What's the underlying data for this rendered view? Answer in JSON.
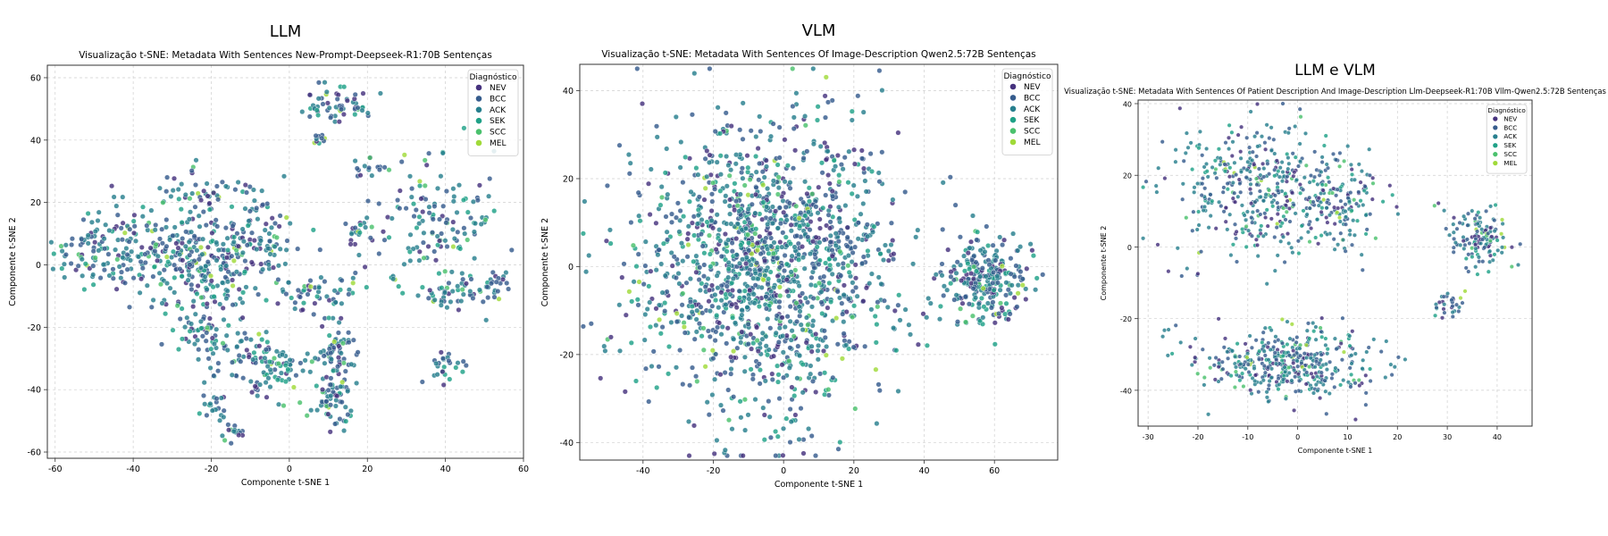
{
  "chart_data": [
    {
      "type": "scatter",
      "suptitle": "LLM",
      "title": "Visualização t-SNE: Metadata With Sentences New-Prompt-Deepseek-R1:70B Sentenças",
      "xlabel": "Componente t-SNE 1",
      "ylabel": "Componente t-SNE 2",
      "xlim": [
        -62,
        60
      ],
      "ylim": [
        -62,
        64
      ],
      "xticks": [
        -60,
        -40,
        -20,
        0,
        20,
        40,
        60
      ],
      "yticks": [
        -60,
        -40,
        -20,
        0,
        20,
        40,
        60
      ],
      "grid": true,
      "legend": {
        "title": "Diagnóstico",
        "location": "top-right"
      },
      "clusters": [
        {
          "cx": -48,
          "cy": 5,
          "sx": 6,
          "sy": 7,
          "n": 110
        },
        {
          "cx": -30,
          "cy": 5,
          "sx": 7,
          "sy": 8,
          "n": 150
        },
        {
          "cx": -20,
          "cy": -2,
          "sx": 5,
          "sy": 9,
          "n": 140
        },
        {
          "cx": -8,
          "cy": 7,
          "sx": 5,
          "sy": 6,
          "n": 90
        },
        {
          "cx": -20,
          "cy": 22,
          "sx": 6,
          "sy": 4,
          "n": 50
        },
        {
          "cx": -22,
          "cy": -22,
          "sx": 4,
          "sy": 5,
          "n": 50
        },
        {
          "cx": -7,
          "cy": -32,
          "sx": 6,
          "sy": 5,
          "n": 110
        },
        {
          "cx": 12,
          "cy": -28,
          "sx": 3,
          "sy": 5,
          "n": 60
        },
        {
          "cx": 11,
          "cy": -43,
          "sx": 3,
          "sy": 4,
          "n": 60
        },
        {
          "cx": 8,
          "cy": -12,
          "sx": 5,
          "sy": 4,
          "n": 30
        },
        {
          "cx": -20,
          "cy": -45,
          "sx": 2,
          "sy": 2,
          "n": 20
        },
        {
          "cx": -14,
          "cy": -54,
          "sx": 1.5,
          "sy": 1.5,
          "n": 15
        },
        {
          "cx": 12,
          "cy": 52,
          "sx": 5,
          "sy": 3,
          "n": 60
        },
        {
          "cx": 8,
          "cy": 40,
          "sx": 1.5,
          "sy": 1.5,
          "n": 10
        },
        {
          "cx": 18,
          "cy": 10,
          "sx": 2,
          "sy": 4,
          "n": 20
        },
        {
          "cx": 21,
          "cy": 31,
          "sx": 2,
          "sy": 2,
          "n": 15
        },
        {
          "cx": 38,
          "cy": 15,
          "sx": 8,
          "sy": 9,
          "n": 130
        },
        {
          "cx": 42,
          "cy": -10,
          "sx": 6,
          "sy": 3,
          "n": 50
        },
        {
          "cx": 52,
          "cy": -7,
          "sx": 2,
          "sy": 2,
          "n": 20
        },
        {
          "cx": 40,
          "cy": -32,
          "sx": 2,
          "sy": 3,
          "n": 25
        },
        {
          "cx": 3,
          "cy": -8,
          "sx": 3,
          "sy": 3,
          "n": 20
        },
        {
          "cx": 15,
          "cy": -8,
          "sx": 2,
          "sy": 3,
          "n": 10
        },
        {
          "cx": 27,
          "cy": -4,
          "sx": 1,
          "sy": 1,
          "n": 5
        }
      ]
    },
    {
      "type": "scatter",
      "suptitle": "VLM",
      "title": "Visualização t-SNE: Metadata With Sentences Of Image-Description Qwen2.5:72B Sentenças",
      "xlabel": "Componente t-SNE 1",
      "ylabel": "Componente t-SNE 2",
      "xlim": [
        -58,
        78
      ],
      "ylim": [
        -44,
        46
      ],
      "xticks": [
        -40,
        -20,
        0,
        20,
        40,
        60
      ],
      "yticks": [
        -40,
        -20,
        0,
        20,
        40
      ],
      "grid": true,
      "legend": {
        "title": "Diagnóstico",
        "location": "top-right"
      },
      "clusters": [
        {
          "cx": -5,
          "cy": 0,
          "sx": 18,
          "sy": 16,
          "n": 1500
        },
        {
          "cx": 58,
          "cy": -3,
          "sx": 6,
          "sy": 5,
          "n": 260
        }
      ]
    },
    {
      "type": "scatter",
      "suptitle": "LLM e VLM",
      "title": "Visualização t-SNE: Metadata With Sentences Of Patient Description And Image-Description Llm-Deepseek-R1:70B Vllm-Qwen2.5:72B Sentenças",
      "xlabel": "Componente t-SNE 1",
      "ylabel": "Componente t-SNE 2",
      "xlim": [
        -32,
        47
      ],
      "ylim": [
        -50,
        41
      ],
      "xticks": [
        -30,
        -20,
        -10,
        0,
        10,
        20,
        30,
        40
      ],
      "yticks": [
        -40,
        -20,
        0,
        20,
        40
      ],
      "grid": true,
      "legend": {
        "title": "Diagnóstico",
        "location": "top-right"
      },
      "clusters": [
        {
          "cx": -8,
          "cy": 16,
          "sx": 9,
          "sy": 9,
          "n": 420
        },
        {
          "cx": 9,
          "cy": 12,
          "sx": 4,
          "sy": 6,
          "n": 120
        },
        {
          "cx": -2,
          "cy": -32,
          "sx": 9,
          "sy": 5,
          "n": 420
        },
        {
          "cx": 37,
          "cy": 3,
          "sx": 3,
          "sy": 4,
          "n": 130
        },
        {
          "cx": 30,
          "cy": -16,
          "sx": 1.3,
          "sy": 2,
          "n": 30
        },
        {
          "cx": 28,
          "cy": 12,
          "sx": 1,
          "sy": 1,
          "n": 3
        },
        {
          "cx": -27,
          "cy": -24,
          "sx": 0.6,
          "sy": 0.6,
          "n": 2
        }
      ]
    }
  ],
  "legend_items": [
    {
      "label": "NEV",
      "color": "#46327e"
    },
    {
      "label": "BCC",
      "color": "#365c8d"
    },
    {
      "label": "ACK",
      "color": "#277f8e"
    },
    {
      "label": "SEK",
      "color": "#1fa187"
    },
    {
      "label": "SCC",
      "color": "#4ac16d"
    },
    {
      "label": "MEL",
      "color": "#a0da39"
    }
  ],
  "class_weights": [
    0.15,
    0.3,
    0.35,
    0.12,
    0.05,
    0.03
  ]
}
